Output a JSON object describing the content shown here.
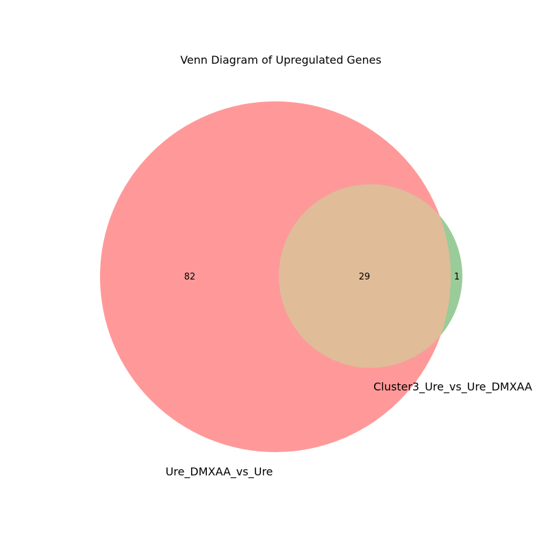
{
  "title": "Venn Diagram of Upregulated Genes",
  "sets": [
    {
      "name": "Ure_DMXAA_vs_Ure",
      "color": "#ff9999",
      "size": 111
    },
    {
      "name": "Cluster3_Ure_vs_Ure_DMXAA",
      "color": "#99cc99",
      "size": 30
    }
  ],
  "overlap_color": "#e0bc99",
  "regions": {
    "only_a": "82",
    "both": "29",
    "only_b": "1"
  },
  "chart_data": {
    "type": "venn",
    "title": "Venn Diagram of Upregulated Genes",
    "sets": [
      "Ure_DMXAA_vs_Ure",
      "Cluster3_Ure_vs_Ure_DMXAA"
    ],
    "region_counts": {
      "Ure_DMXAA_vs_Ure_only": 82,
      "intersection": 29,
      "Cluster3_Ure_vs_Ure_DMXAA_only": 1
    }
  }
}
